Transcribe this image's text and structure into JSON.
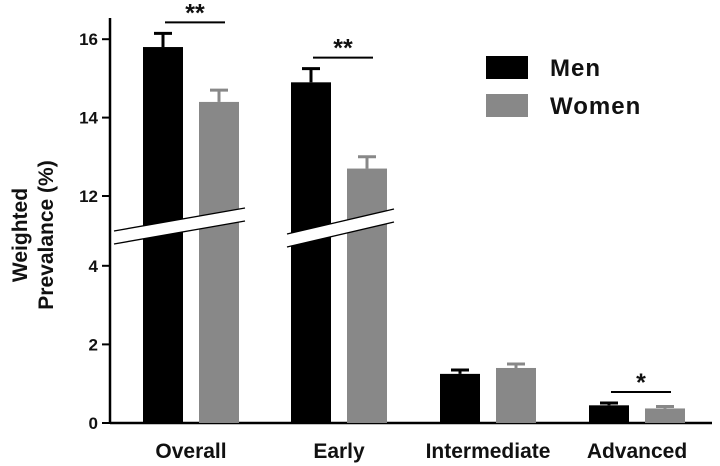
{
  "chart_data": {
    "type": "bar",
    "ylabel_line1": "Weighted",
    "ylabel_line2": "Prevalance (%)",
    "categories": [
      "Overall",
      "Early",
      "Intermediate",
      "Advanced"
    ],
    "series": [
      {
        "name": "Men",
        "color": "#000000",
        "values": [
          15.8,
          14.9,
          1.25,
          0.45
        ],
        "errors": [
          0.35,
          0.35,
          0.1,
          0.06
        ]
      },
      {
        "name": "Women",
        "color": "#888888",
        "values": [
          14.4,
          12.7,
          1.4,
          0.37
        ],
        "errors": [
          0.3,
          0.3,
          0.1,
          0.05
        ]
      }
    ],
    "y_ticks": [
      0,
      2,
      4,
      12,
      14,
      16
    ],
    "y_axis_break": {
      "lower_segment": [
        0,
        4.5
      ],
      "upper_segment": [
        11.3,
        16.3
      ]
    },
    "significance": [
      {
        "category": "Overall",
        "label": "**"
      },
      {
        "category": "Early",
        "label": "**"
      },
      {
        "category": "Advanced",
        "label": "*"
      }
    ],
    "legend_position": "top-right"
  }
}
